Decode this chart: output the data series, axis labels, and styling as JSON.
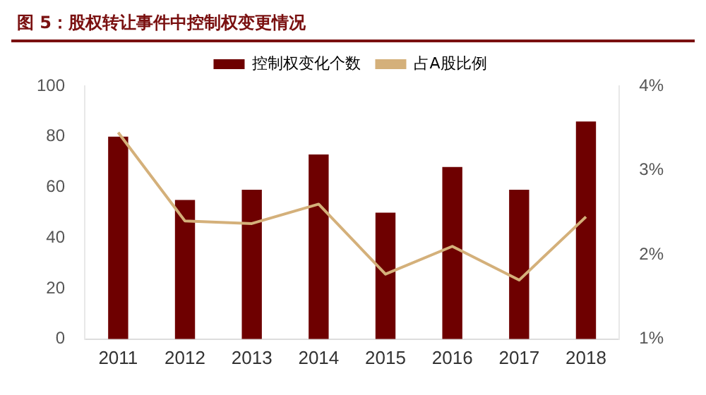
{
  "chart_data": {
    "type": "bar",
    "title": "图 5：股权转让事件中控制权变更情况",
    "categories": [
      "2011",
      "2012",
      "2013",
      "2014",
      "2015",
      "2016",
      "2017",
      "2018"
    ],
    "series": [
      {
        "name": "控制权变化个数",
        "color": "#6e0000",
        "values": [
          80,
          55,
          59,
          73,
          50,
          68,
          59,
          86
        ]
      },
      {
        "name": "占A股比例",
        "type": "line",
        "axis": "y2",
        "color": "#d4b07a",
        "values": [
          3.45,
          2.4,
          2.37,
          2.6,
          1.77,
          2.1,
          1.7,
          2.45
        ]
      }
    ],
    "ylim": [
      0,
      100
    ],
    "yticks": [
      0,
      20,
      40,
      60,
      80,
      100
    ],
    "y2lim": [
      1,
      4
    ],
    "y2ticks": [
      {
        "value": 1,
        "label": "1%"
      },
      {
        "value": 2,
        "label": "2%"
      },
      {
        "value": 3,
        "label": "3%"
      },
      {
        "value": 4,
        "label": "4%"
      }
    ],
    "grid": false,
    "legend": "top",
    "marker": "none"
  }
}
